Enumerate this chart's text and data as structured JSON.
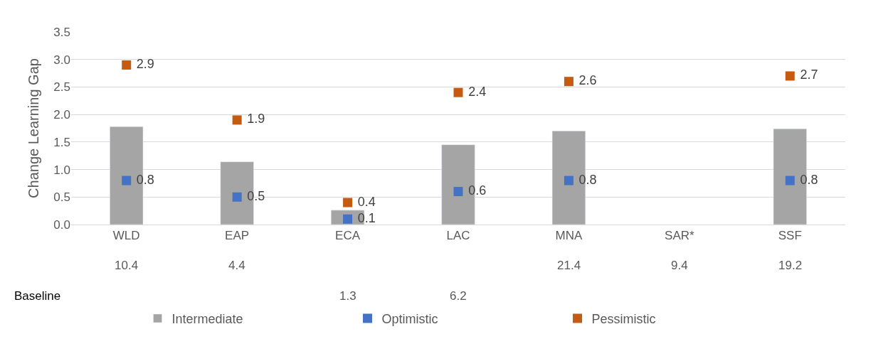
{
  "chart_data": {
    "type": "bar",
    "ylabel": "Change Learning Gap",
    "categories": [
      "WLD",
      "EAP",
      "ECA",
      "LAC",
      "MNA",
      "SAR*",
      "SSF"
    ],
    "series": [
      {
        "name": "Intermediate",
        "color": "#a5a5a5",
        "values": [
          1.78,
          1.14,
          0.26,
          1.45,
          1.7,
          null,
          1.74
        ]
      },
      {
        "name": "Optimistic",
        "type": "scatter",
        "color": "#4472c4",
        "values": [
          0.8,
          0.5,
          0.1,
          0.6,
          0.8,
          null,
          0.8
        ],
        "value_labels": [
          "0.8",
          "0.5",
          "0.1",
          "0.6",
          "0.8",
          null,
          "0.8"
        ]
      },
      {
        "name": "Pessimistic",
        "type": "scatter",
        "color": "#c55a11",
        "values": [
          2.9,
          1.9,
          0.4,
          2.4,
          2.6,
          null,
          2.7
        ],
        "value_labels": [
          "2.9",
          "1.9",
          "0.4",
          "2.4",
          "2.6",
          null,
          "2.7"
        ]
      }
    ],
    "ylim": [
      0,
      3.5
    ],
    "yticks": [
      {
        "value": 0,
        "label": "0.0"
      },
      0.5,
      {
        "value": 1,
        "label": "1.0"
      },
      1.5,
      {
        "value": 2,
        "label": "2.0"
      },
      2.5,
      {
        "value": 3,
        "label": "3.0"
      },
      3.5
    ],
    "grid": "y",
    "legend": "bottom",
    "marker": "square",
    "annotations": [
      "Baseline",
      "10.4",
      "4.4",
      "1.3",
      "6.2",
      "21.4",
      "9.4",
      "19.2"
    ]
  }
}
